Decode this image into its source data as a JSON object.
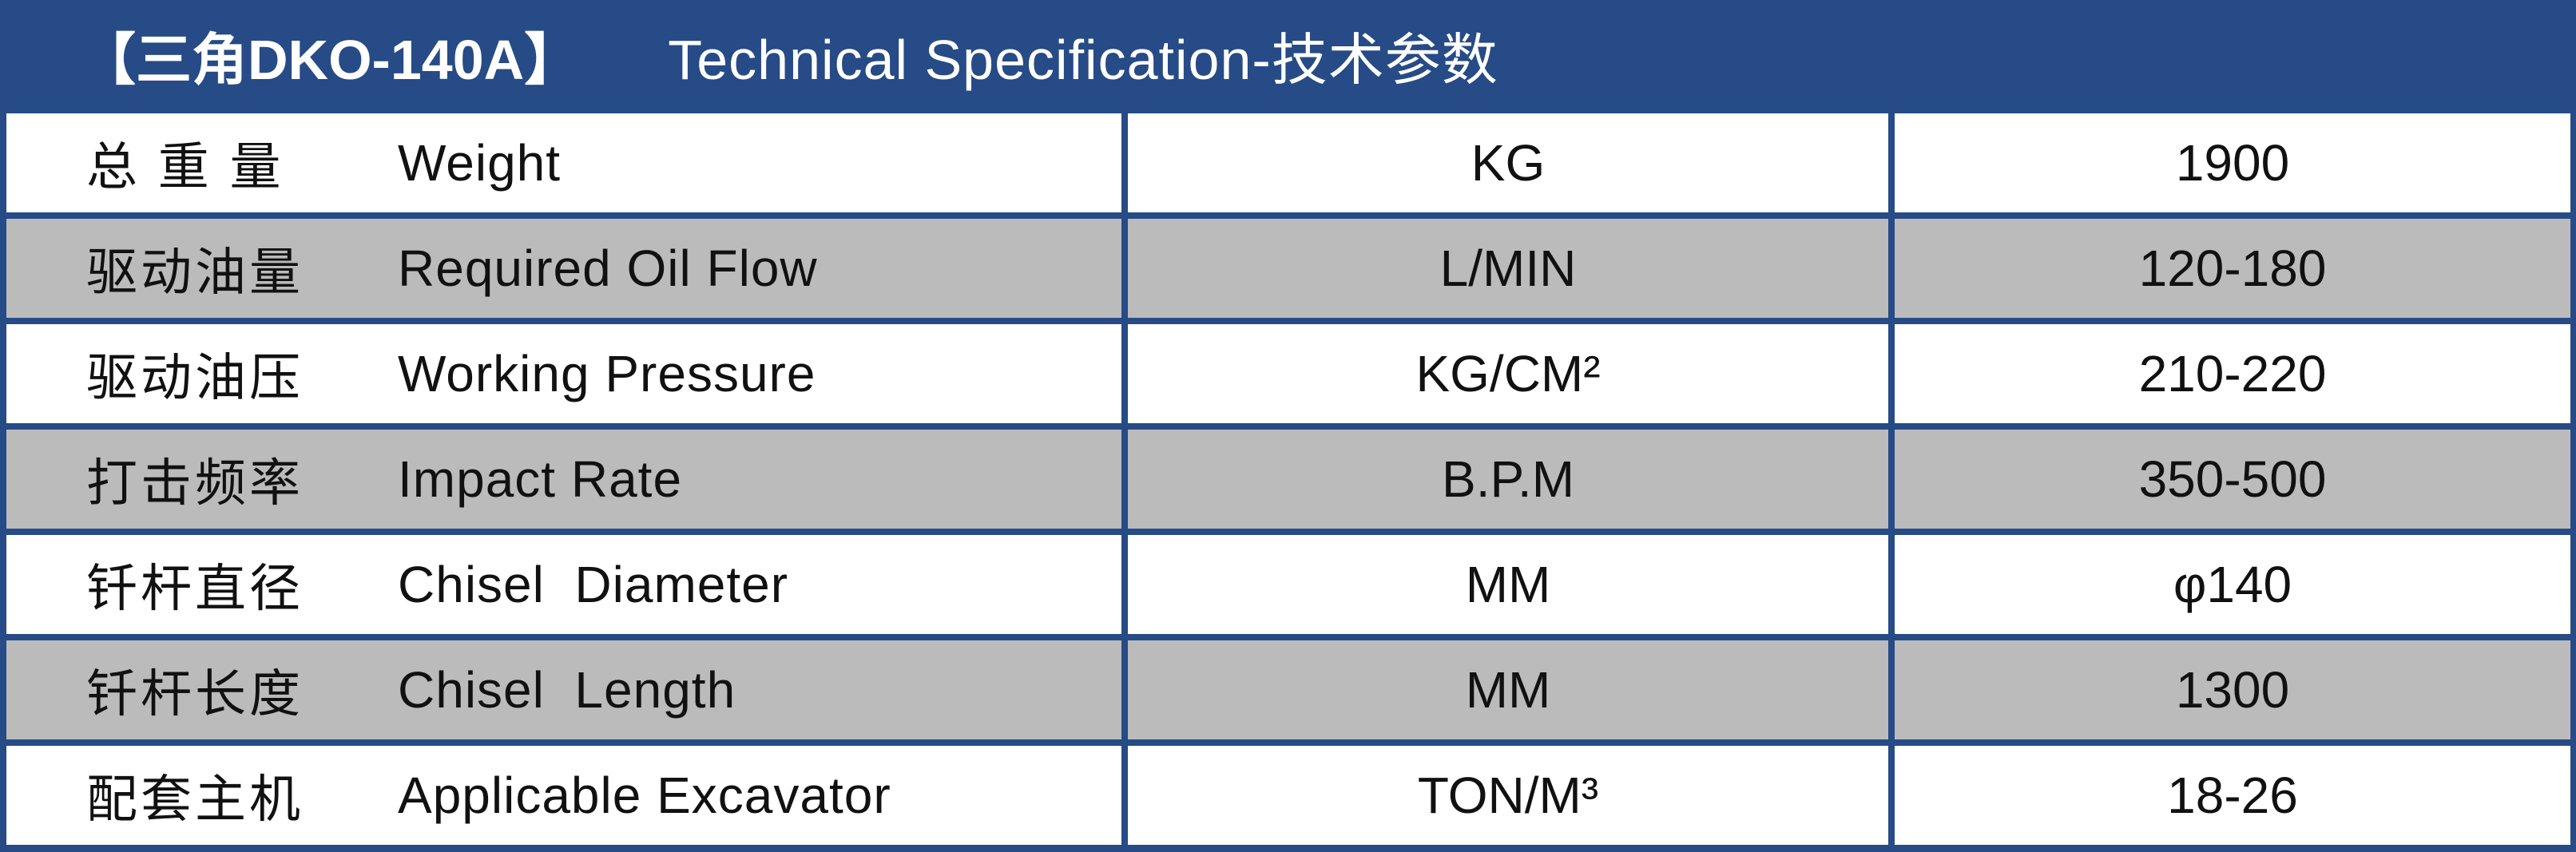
{
  "header": {
    "model": "【三角DKO-140A】",
    "title": "Technical Specification-技术参数"
  },
  "colors": {
    "brand_blue": "#264b86",
    "row_gray": "#bcbbbc",
    "row_white": "#ffffff"
  },
  "rows": [
    {
      "zh": "总 重 量",
      "en": "Weight",
      "unit": "KG",
      "value": "1900"
    },
    {
      "zh": "驱动油量",
      "en": "Required Oil Flow",
      "unit": "L/MIN",
      "value": "120-180"
    },
    {
      "zh": "驱动油压",
      "en": "Working Pressure",
      "unit": "KG/CM²",
      "value": "210-220"
    },
    {
      "zh": "打击频率",
      "en": "Impact Rate",
      "unit": "B.P.M",
      "value": "350-500"
    },
    {
      "zh": "钎杆直径",
      "en": "Chisel  Diameter",
      "unit": "MM",
      "value": "φ140"
    },
    {
      "zh": "钎杆长度",
      "en": "Chisel  Length",
      "unit": "MM",
      "value": "1300"
    },
    {
      "zh": "配套主机",
      "en": "Applicable Excavator",
      "unit": "TON/M³",
      "value": "18-26"
    }
  ]
}
